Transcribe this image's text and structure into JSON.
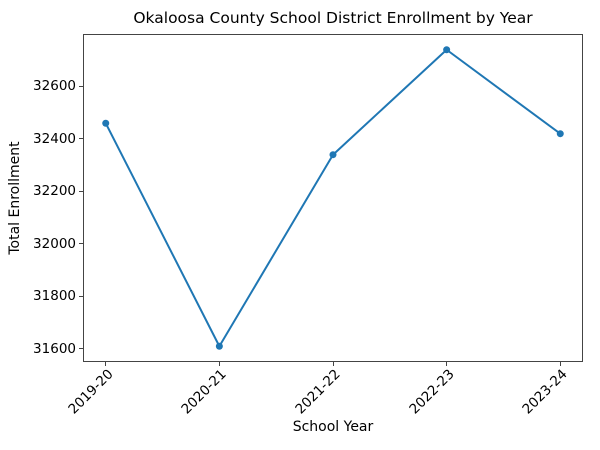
{
  "figure": {
    "background": "#ffffff"
  },
  "chart_data": {
    "type": "line",
    "title": "Okaloosa County School District Enrollment by Year",
    "xlabel": "School Year",
    "ylabel": "Total Enrollment",
    "categories": [
      "2019-20",
      "2020-21",
      "2021-22",
      "2022-23",
      "2023-24"
    ],
    "values": [
      32460,
      31610,
      32340,
      32740,
      32420
    ],
    "yticks": [
      31600,
      31800,
      32000,
      32200,
      32400,
      32600
    ],
    "ylim": [
      31550,
      32800
    ],
    "xlim": [
      -0.2,
      4.2
    ],
    "x_tick_rotation": 45,
    "grid": false,
    "legend": false,
    "line_color": "#1f77b4",
    "marker": "circle",
    "marker_size": 7,
    "line_width": 2,
    "axis_color": "#444444",
    "text_color": "#000000"
  }
}
